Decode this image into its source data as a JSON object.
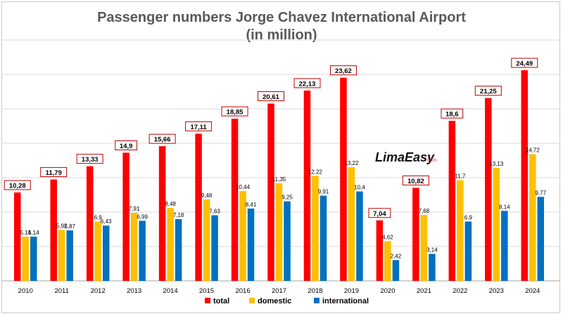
{
  "chart_data": {
    "type": "bar",
    "title": "Passenger numbers Jorge Chavez International Airport",
    "subtitle": "(in million)",
    "xlabel": "",
    "ylabel": "",
    "ylim": [
      0,
      28
    ],
    "grid": true,
    "legend_position": "bottom",
    "categories": [
      "2010",
      "2011",
      "2012",
      "2013",
      "2014",
      "2015",
      "2016",
      "2017",
      "2018",
      "2019",
      "2020",
      "2021",
      "2022",
      "2023",
      "2024"
    ],
    "series": [
      {
        "name": "total",
        "color": "#ff0000",
        "values": [
          10.28,
          11.79,
          13.33,
          14.9,
          15.66,
          17.11,
          18.85,
          20.61,
          22.13,
          23.62,
          7.04,
          10.82,
          18.6,
          21.25,
          24.49
        ],
        "labels": [
          "10,28",
          "11,79",
          "13,33",
          "14,9",
          "15,66",
          "17,11",
          "18,85",
          "20,61",
          "22,13",
          "23,62",
          "7,04",
          "10,82",
          "18,6",
          "21,25",
          "24,49"
        ]
      },
      {
        "name": "domestic",
        "color": "#ffc000",
        "values": [
          5.14,
          5.92,
          6.9,
          7.91,
          8.48,
          9.48,
          10.44,
          11.35,
          12.22,
          13.22,
          4.62,
          7.68,
          11.7,
          13.13,
          14.72
        ],
        "labels": [
          "5,14",
          "5,92",
          "6,9",
          "7,91",
          "8,48",
          "9,48",
          "10,44",
          "11,35",
          "12,22",
          "13,22",
          "4,62",
          "7,68",
          "11,7",
          "13,13",
          "14,72"
        ]
      },
      {
        "name": "international",
        "color": "#0070c0",
        "values": [
          5.14,
          5.87,
          6.43,
          6.99,
          7.18,
          7.63,
          8.41,
          9.25,
          9.91,
          10.4,
          2.42,
          3.14,
          6.9,
          8.14,
          9.77
        ],
        "labels": [
          "5,14",
          "5,87",
          "6,43",
          "6,99",
          "7,18",
          "7,63",
          "8,41",
          "9,25",
          "9,91",
          "10,4",
          "2,42",
          "3,14",
          "6,9",
          "8,14",
          "9,77"
        ]
      }
    ]
  },
  "watermark": {
    "text": "LimaEasy",
    "suffix": ".com"
  }
}
